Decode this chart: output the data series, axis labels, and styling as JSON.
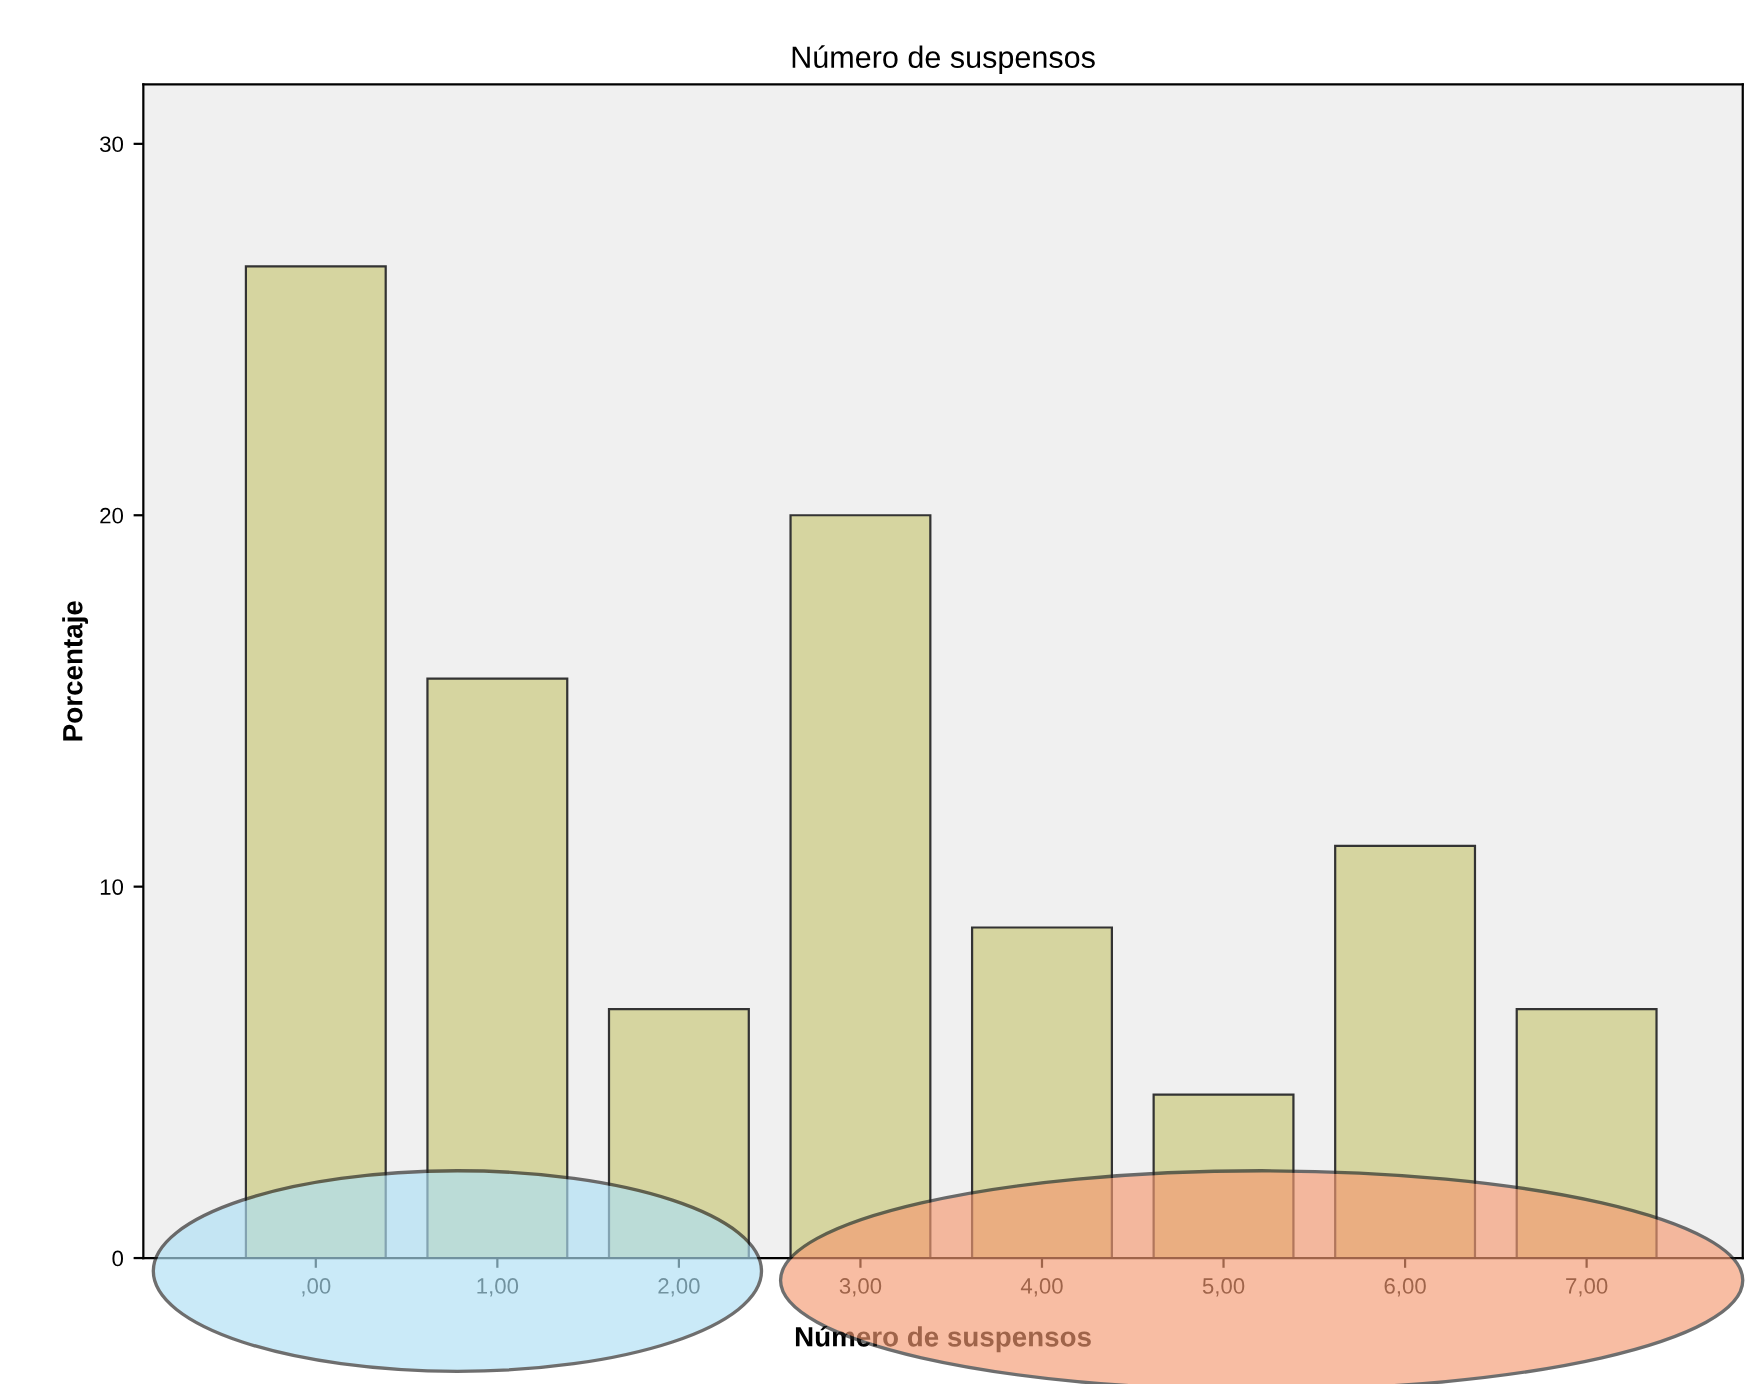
{
  "chart_data": {
    "type": "bar",
    "title": "Número de suspensos",
    "xlabel": "Número de suspensos",
    "ylabel": "Porcentaje",
    "categories": [
      ",00",
      "1,00",
      "2,00",
      "3,00",
      "4,00",
      "5,00",
      "6,00",
      "7,00"
    ],
    "values": [
      26.7,
      15.6,
      6.7,
      20.0,
      8.9,
      4.4,
      11.1,
      6.7
    ],
    "color": "#d6d5a0",
    "ylim": [
      0,
      31.6
    ],
    "yticks": [
      0,
      10,
      20,
      30
    ],
    "grid": false,
    "legend": false
  }
}
